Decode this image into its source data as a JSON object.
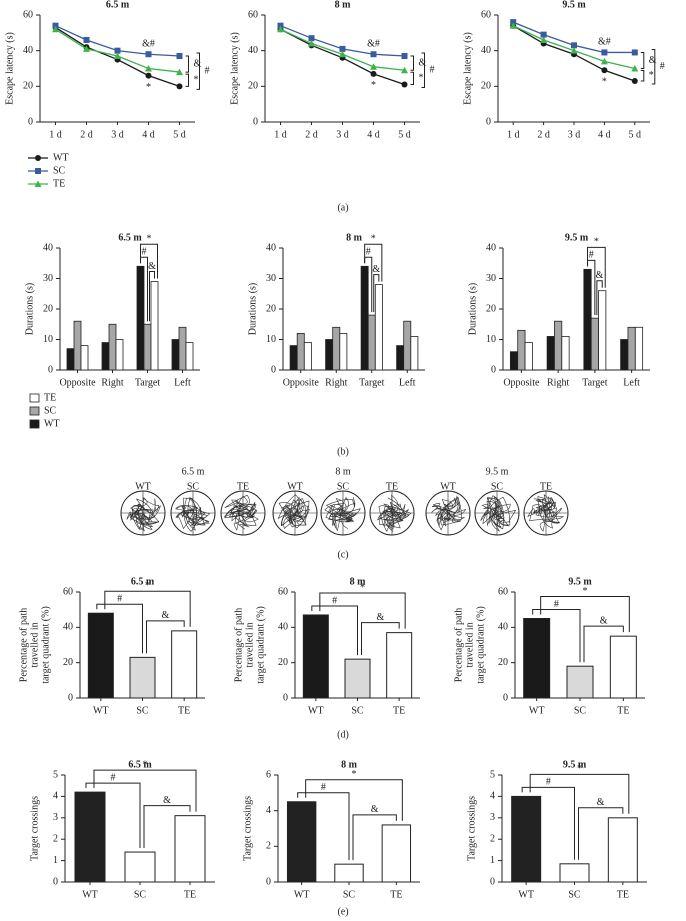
{
  "panel_labels": [
    "(a)",
    "(b)",
    "(c)",
    "(d)",
    "(e)"
  ],
  "trace_panels": [
    {
      "title": "6.5 m",
      "labels": [
        "WT",
        "SC",
        "TE"
      ]
    },
    {
      "title": "8 m",
      "labels": [
        "WT",
        "SC",
        "TE"
      ]
    },
    {
      "title": "9.5 m",
      "labels": [
        "WT",
        "SC",
        "TE"
      ]
    }
  ],
  "chart_data": [
    {
      "type": "line",
      "title": "6.5 m",
      "y_label": [
        "Escape latency (s)"
      ],
      "categories": [
        "1 d",
        "2 d",
        "3 d",
        "4 d",
        "5 d"
      ],
      "ylim": [
        0,
        60
      ],
      "yticks": [
        0,
        20,
        40,
        60
      ],
      "legend": true,
      "series": [
        {
          "name": "WT",
          "color": "#1a1a1a",
          "values": [
            53,
            42,
            35,
            26,
            20
          ]
        },
        {
          "name": "SC",
          "color": "#3a5ba0",
          "values": [
            54,
            46,
            40,
            38,
            37
          ]
        },
        {
          "name": "TE",
          "color": "#3cb44b",
          "values": [
            52,
            41,
            37,
            30,
            28
          ]
        }
      ],
      "annotations": [
        "&#",
        "*",
        "&",
        "*",
        "#"
      ]
    },
    {
      "type": "line",
      "title": "8 m",
      "y_label": [
        "Escape latency (s)"
      ],
      "categories": [
        "1 d",
        "2 d",
        "3 d",
        "4 d",
        "5 d"
      ],
      "ylim": [
        0,
        60
      ],
      "yticks": [
        0,
        20,
        40,
        60
      ],
      "series": [
        {
          "color": "#1a1a1a",
          "values": [
            52,
            43,
            36,
            27,
            21
          ]
        },
        {
          "color": "#3a5ba0",
          "values": [
            54,
            47,
            41,
            38,
            37
          ]
        },
        {
          "color": "#3cb44b",
          "values": [
            52,
            44,
            38,
            31,
            29
          ]
        }
      ],
      "annotations": [
        "&#",
        "*",
        "&",
        "*",
        "#"
      ]
    },
    {
      "type": "line",
      "title": "9.5 m",
      "y_label": [
        "Escape latency (s)"
      ],
      "categories": [
        "1 d",
        "2 d",
        "3 d",
        "4 d",
        "5 d"
      ],
      "ylim": [
        0,
        60
      ],
      "yticks": [
        0,
        20,
        40,
        60
      ],
      "series": [
        {
          "color": "#1a1a1a",
          "values": [
            54,
            44,
            38,
            29,
            23
          ]
        },
        {
          "color": "#3a5ba0",
          "values": [
            56,
            49,
            43,
            39,
            39
          ]
        },
        {
          "color": "#3cb44b",
          "values": [
            54,
            46,
            40,
            34,
            30
          ]
        }
      ],
      "annotations": [
        "&#",
        "*",
        "&",
        "*",
        "#"
      ]
    },
    {
      "type": "grouped",
      "title": "6.5 m",
      "y_label": [
        "Durations (s)"
      ],
      "categories": [
        "Opposite",
        "Right",
        "Target",
        "Left"
      ],
      "ylim": [
        0,
        40
      ],
      "yticks": [
        0,
        10,
        20,
        30,
        40
      ],
      "legend": true,
      "series": [
        {
          "name": "WT",
          "color": "#1a1a1a",
          "values": [
            7,
            9,
            34,
            10
          ]
        },
        {
          "name": "SC",
          "color": "#a6a6a6",
          "values": [
            16,
            15,
            15,
            14
          ]
        },
        {
          "name": "TE",
          "color": "#ffffff",
          "values": [
            8,
            10,
            29,
            9
          ]
        }
      ],
      "annotations": [
        "#",
        "&",
        "*"
      ]
    },
    {
      "type": "grouped",
      "title": "8 m",
      "y_label": [
        "Durations (s)"
      ],
      "categories": [
        "Opposite",
        "Right",
        "Target",
        "Left"
      ],
      "ylim": [
        0,
        40
      ],
      "yticks": [
        0,
        10,
        20,
        30,
        40
      ],
      "series": [
        {
          "color": "#1a1a1a",
          "values": [
            8,
            10,
            34,
            8
          ]
        },
        {
          "color": "#a6a6a6",
          "values": [
            12,
            14,
            18,
            16
          ]
        },
        {
          "color": "#ffffff",
          "values": [
            9,
            12,
            28,
            11
          ]
        }
      ],
      "annotations": [
        "#",
        "&",
        "*"
      ]
    },
    {
      "type": "grouped",
      "title": "9.5 m",
      "y_label": [
        "Durations (s)"
      ],
      "categories": [
        "Opposite",
        "Right",
        "Target",
        "Left"
      ],
      "ylim": [
        0,
        40
      ],
      "yticks": [
        0,
        10,
        20,
        30,
        40
      ],
      "series": [
        {
          "color": "#1a1a1a",
          "values": [
            6,
            11,
            33,
            10
          ]
        },
        {
          "color": "#a6a6a6",
          "values": [
            13,
            16,
            17,
            14
          ]
        },
        {
          "color": "#ffffff",
          "values": [
            9,
            11,
            26,
            14
          ]
        }
      ],
      "annotations": [
        "#",
        "&",
        "*"
      ]
    },
    {
      "type": "bar",
      "title": "6.5 m",
      "y_label": [
        "Percentage of path",
        "travelled in",
        "target quadrant (%)"
      ],
      "categories": [
        "WT",
        "SC",
        "TE"
      ],
      "values": [
        48,
        23,
        38
      ],
      "colors": [
        "#1a1a1a",
        "#d9d9d9",
        "#ffffff"
      ],
      "ylim": [
        0,
        60
      ],
      "yticks": [
        0,
        20,
        40,
        60
      ],
      "annotations": [
        "#",
        "&",
        "*"
      ]
    },
    {
      "type": "bar",
      "title": "8 m",
      "y_label": [
        "Percentage of path",
        "travelled in",
        "target quadrant (%)"
      ],
      "categories": [
        "WT",
        "SC",
        "TE"
      ],
      "values": [
        47,
        22,
        37
      ],
      "colors": [
        "#1a1a1a",
        "#d9d9d9",
        "#ffffff"
      ],
      "ylim": [
        0,
        60
      ],
      "yticks": [
        0,
        20,
        40,
        60
      ],
      "annotations": [
        "#",
        "&",
        "*"
      ]
    },
    {
      "type": "bar",
      "title": "9.5 m",
      "y_label": [
        "Percentage of path",
        "travelled in",
        "target quadrant (%)"
      ],
      "categories": [
        "WT",
        "SC",
        "TE"
      ],
      "values": [
        45,
        18,
        35
      ],
      "colors": [
        "#1a1a1a",
        "#d9d9d9",
        "#ffffff"
      ],
      "ylim": [
        0,
        60
      ],
      "yticks": [
        0,
        20,
        40,
        60
      ],
      "annotations": [
        "#",
        "&",
        "*"
      ]
    },
    {
      "type": "bar",
      "title": "6.5 m",
      "y_label": [
        "Target crossings"
      ],
      "categories": [
        "WT",
        "SC",
        "TE"
      ],
      "values": [
        4.2,
        1.4,
        3.1
      ],
      "colors": [
        "#222222",
        "#ffffff",
        "#ffffff"
      ],
      "ylim": [
        0,
        5
      ],
      "yticks": [
        0,
        1,
        2,
        3,
        4,
        5
      ],
      "annotations": [
        "#",
        "&",
        "*"
      ]
    },
    {
      "type": "bar",
      "title": "8 m",
      "y_label": [
        "Target crossings"
      ],
      "categories": [
        "WT",
        "SC",
        "TE"
      ],
      "values": [
        4.5,
        1.0,
        3.2
      ],
      "colors": [
        "#222222",
        "#ffffff",
        "#ffffff"
      ],
      "ylim": [
        0,
        6
      ],
      "yticks": [
        0,
        2,
        4,
        6
      ],
      "annotations": [
        "#",
        "&",
        "*"
      ]
    },
    {
      "type": "bar",
      "title": "9.5 m",
      "y_label": [
        "Target crossings"
      ],
      "categories": [
        "WT",
        "SC",
        "TE"
      ],
      "values": [
        4.0,
        0.85,
        3.0
      ],
      "colors": [
        "#222222",
        "#ffffff",
        "#ffffff"
      ],
      "ylim": [
        0,
        5
      ],
      "yticks": [
        0,
        1,
        2,
        3,
        4,
        5
      ],
      "annotations": [
        "#",
        "&",
        "*"
      ]
    }
  ]
}
